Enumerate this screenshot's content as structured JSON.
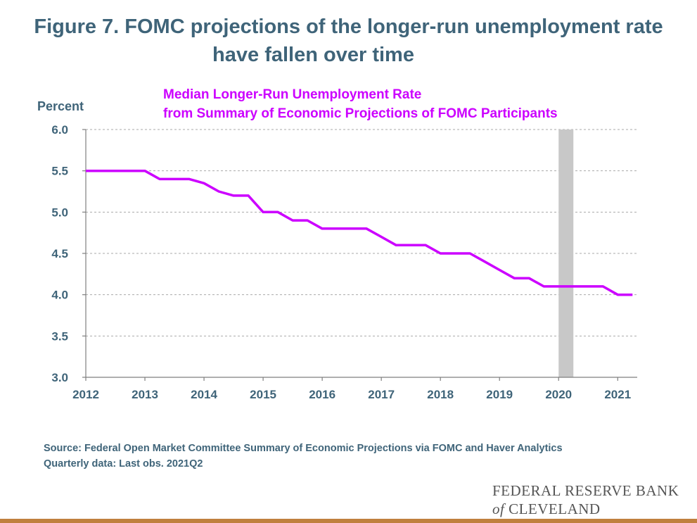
{
  "title": {
    "line1": "Figure 7. FOMC projections of the longer-run unemployment rate",
    "line2": "have fallen over time"
  },
  "colors": {
    "title": "#3F6479",
    "series": "#CC00FF",
    "recession": "#C8C8C8",
    "grid": "#AAAAAA",
    "rule": "#C0803E"
  },
  "footer": {
    "source": "Source: Federal Open Market Committee Summary of Economic Projections via FOMC and Haver Analytics",
    "note": "Quarterly data: Last obs. 2021Q2"
  },
  "logo": {
    "line1": "FEDERAL RESERVE BANK",
    "of": "of",
    "line2_rest": " CLEVELAND"
  },
  "chart_data": {
    "type": "line",
    "ylabel": "Percent",
    "xlabel": "",
    "ylim": [
      3.0,
      6.0
    ],
    "yticks": [
      "3.0",
      "3.5",
      "4.0",
      "4.5",
      "5.0",
      "5.5",
      "6.0"
    ],
    "xlim": [
      2012.0,
      2021.33
    ],
    "xticks": [
      "2012",
      "2013",
      "2014",
      "2015",
      "2016",
      "2017",
      "2018",
      "2019",
      "2020",
      "2021"
    ],
    "grid": "horizontal dashed",
    "shaded_region": {
      "start": 2020.0,
      "end": 2020.25
    },
    "series": [
      {
        "label_line1": "Median Longer-Run Unemployment Rate",
        "label_line2": "from Summary of Economic Projections of FOMC Participants",
        "points": [
          [
            2012.0,
            5.5
          ],
          [
            2012.25,
            5.5
          ],
          [
            2012.5,
            5.5
          ],
          [
            2012.75,
            5.5
          ],
          [
            2013.0,
            5.5
          ],
          [
            2013.25,
            5.4
          ],
          [
            2013.5,
            5.4
          ],
          [
            2013.75,
            5.4
          ],
          [
            2014.0,
            5.35
          ],
          [
            2014.25,
            5.25
          ],
          [
            2014.5,
            5.2
          ],
          [
            2014.75,
            5.2
          ],
          [
            2015.0,
            5.0
          ],
          [
            2015.25,
            5.0
          ],
          [
            2015.5,
            4.9
          ],
          [
            2015.75,
            4.9
          ],
          [
            2016.0,
            4.8
          ],
          [
            2016.25,
            4.8
          ],
          [
            2016.5,
            4.8
          ],
          [
            2016.75,
            4.8
          ],
          [
            2017.0,
            4.7
          ],
          [
            2017.25,
            4.6
          ],
          [
            2017.5,
            4.6
          ],
          [
            2017.75,
            4.6
          ],
          [
            2018.0,
            4.5
          ],
          [
            2018.25,
            4.5
          ],
          [
            2018.5,
            4.5
          ],
          [
            2018.75,
            4.4
          ],
          [
            2019.0,
            4.3
          ],
          [
            2019.25,
            4.2
          ],
          [
            2019.5,
            4.2
          ],
          [
            2019.75,
            4.1
          ],
          [
            2020.0,
            4.1
          ],
          [
            2020.25,
            4.1
          ],
          [
            2020.5,
            4.1
          ],
          [
            2020.75,
            4.1
          ],
          [
            2021.0,
            4.0
          ],
          [
            2021.25,
            4.0
          ]
        ]
      }
    ]
  }
}
